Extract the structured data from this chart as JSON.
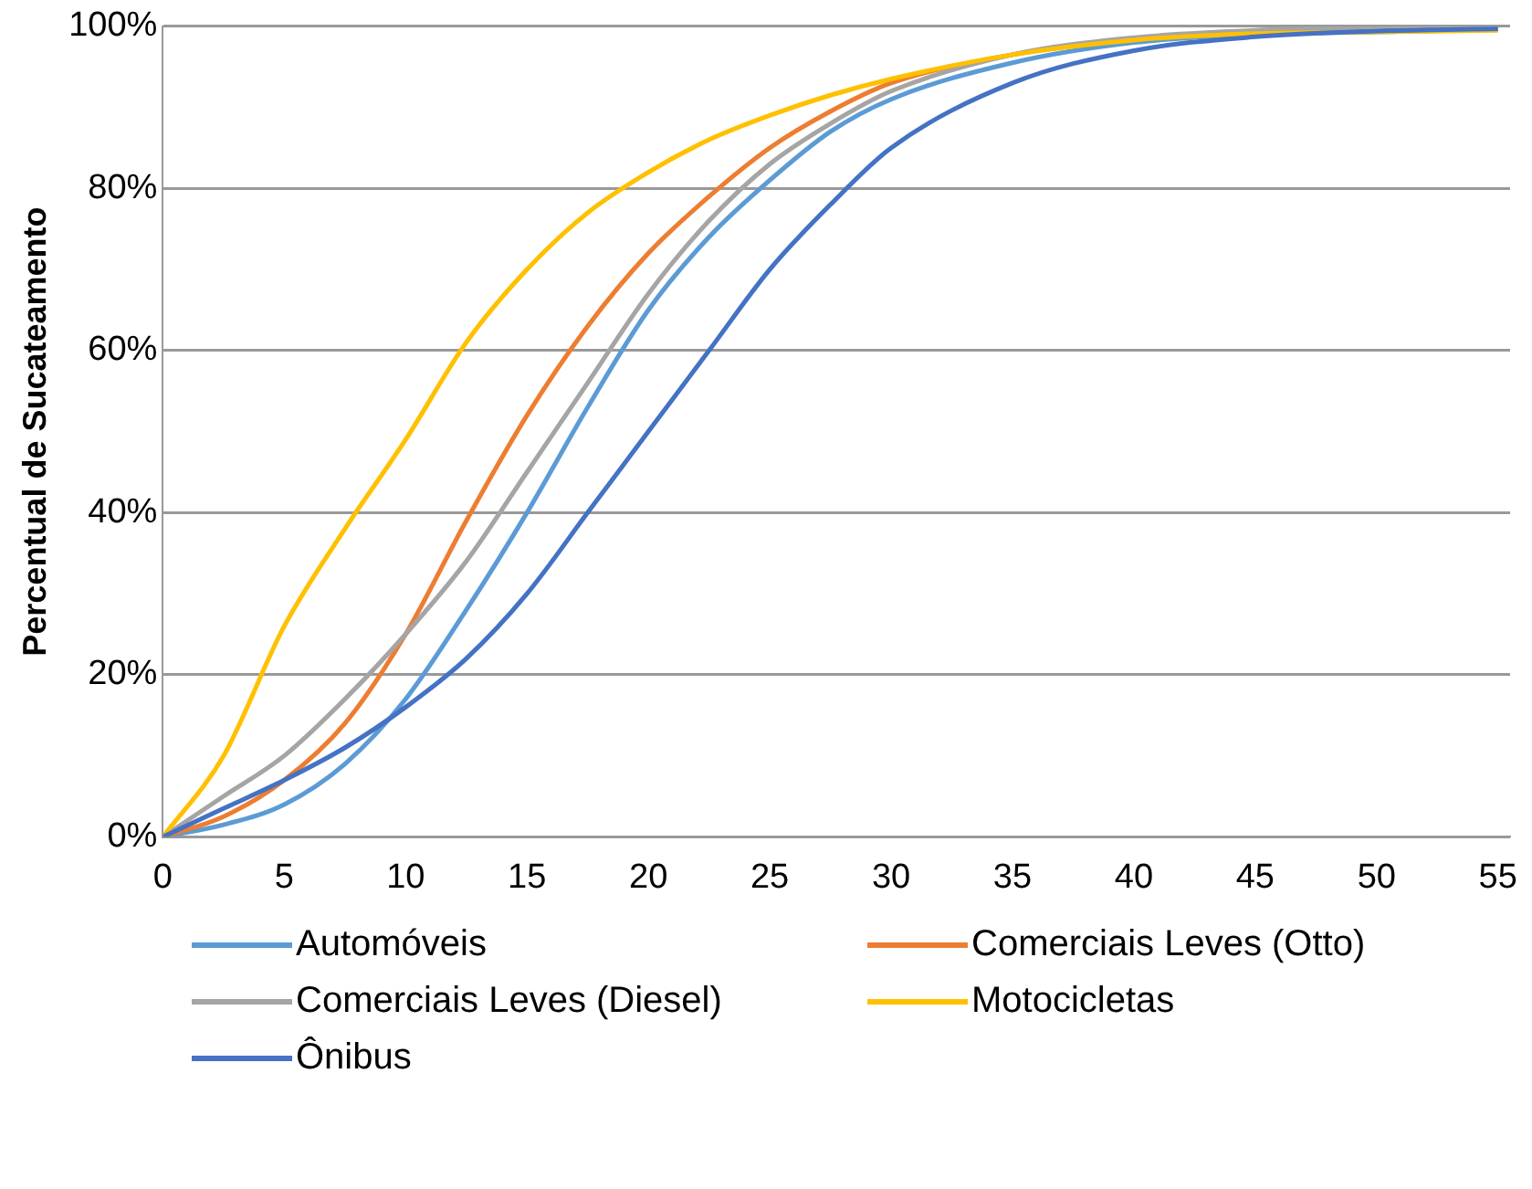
{
  "chart_data": {
    "type": "line",
    "ylabel": "Percentual de Sucateamento",
    "x": [
      0,
      2.5,
      5,
      7.5,
      10,
      12.5,
      15,
      17.5,
      20,
      22.5,
      25,
      27.5,
      30,
      35,
      40,
      45,
      50,
      55
    ],
    "series": [
      {
        "name": "Automóveis",
        "color": "#5b9bd5",
        "values": [
          0,
          1.5,
          4,
          9,
          17,
          28,
          40,
          53,
          65,
          74,
          81,
          87,
          91,
          95.5,
          98,
          99,
          99.3,
          99.6
        ]
      },
      {
        "name": "Comerciais Leves (Otto)",
        "color": "#ed7d31",
        "values": [
          0,
          2.5,
          7,
          14,
          25,
          39,
          52,
          63,
          72,
          79,
          85,
          89.5,
          93,
          96.5,
          98.5,
          null,
          null,
          null
        ]
      },
      {
        "name": "Comerciais Leves (Diesel)",
        "color": "#a5a5a5",
        "values": [
          0,
          5,
          10,
          17,
          25,
          34,
          45,
          56,
          67,
          76,
          83,
          88,
          92,
          96.5,
          98.6,
          99.5,
          99.8,
          100
        ]
      },
      {
        "name": "Motocicletas",
        "color": "#ffc000",
        "values": [
          0,
          10,
          26,
          38,
          49,
          61,
          70,
          77,
          82,
          86,
          89,
          91.5,
          93.5,
          96.5,
          98.3,
          99.1,
          99.3,
          99.5
        ]
      },
      {
        "name": "Ônibus",
        "color": "#4472c4",
        "values": [
          0,
          3.5,
          7,
          11,
          16,
          22,
          30,
          40,
          50,
          60,
          70,
          78,
          85,
          93,
          97,
          98.7,
          99.4,
          99.7
        ]
      }
    ],
    "xlim": [
      0,
      55.5
    ],
    "xticks": [
      0,
      5,
      10,
      15,
      20,
      25,
      30,
      35,
      40,
      45,
      50,
      55
    ],
    "ylim": [
      0,
      100
    ],
    "yticks": [
      {
        "value": 0,
        "label": "0%"
      },
      {
        "value": 20,
        "label": "20%"
      },
      {
        "value": 40,
        "label": "40%"
      },
      {
        "value": 60,
        "label": "60%"
      },
      {
        "value": 80,
        "label": "80%"
      },
      {
        "value": 100,
        "label": "100%"
      }
    ],
    "grid": "y",
    "legend": "bottom",
    "marker": "none",
    "line_style": "solid"
  }
}
